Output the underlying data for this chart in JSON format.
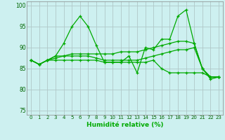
{
  "xlabel": "Humidité relative (%)",
  "background_color": "#cdf0f0",
  "grid_color": "#b0c8c8",
  "line_color": "#00aa00",
  "ylim": [
    74,
    101
  ],
  "xlim": [
    -0.5,
    23.5
  ],
  "yticks": [
    75,
    80,
    85,
    90,
    95,
    100
  ],
  "xticks": [
    0,
    1,
    2,
    3,
    4,
    5,
    6,
    7,
    8,
    9,
    10,
    11,
    12,
    13,
    14,
    15,
    16,
    17,
    18,
    19,
    20,
    21,
    22,
    23
  ],
  "series": [
    [
      87,
      86,
      87,
      88,
      91,
      95,
      97.5,
      95,
      90.5,
      86.5,
      86.5,
      86.5,
      88,
      84,
      90,
      89.5,
      92,
      92,
      97.5,
      99,
      91,
      85,
      82.5,
      83
    ],
    [
      87,
      86,
      87,
      88,
      88,
      88.5,
      88.5,
      88.5,
      88.5,
      88.5,
      88.5,
      89,
      89,
      89,
      89.5,
      90,
      90.5,
      91,
      91.5,
      91.5,
      91,
      85,
      83,
      83
    ],
    [
      87,
      86,
      87,
      87.5,
      88,
      88,
      88,
      88,
      87.5,
      87,
      87,
      87,
      87,
      87,
      87.5,
      88,
      88.5,
      89,
      89.5,
      89.5,
      90,
      85,
      83,
      83
    ],
    [
      87,
      86,
      87,
      87,
      87,
      87,
      87,
      87,
      87,
      86.5,
      86.5,
      86.5,
      86.5,
      86.5,
      86.5,
      87,
      85,
      84,
      84,
      84,
      84,
      84,
      83,
      83
    ]
  ]
}
